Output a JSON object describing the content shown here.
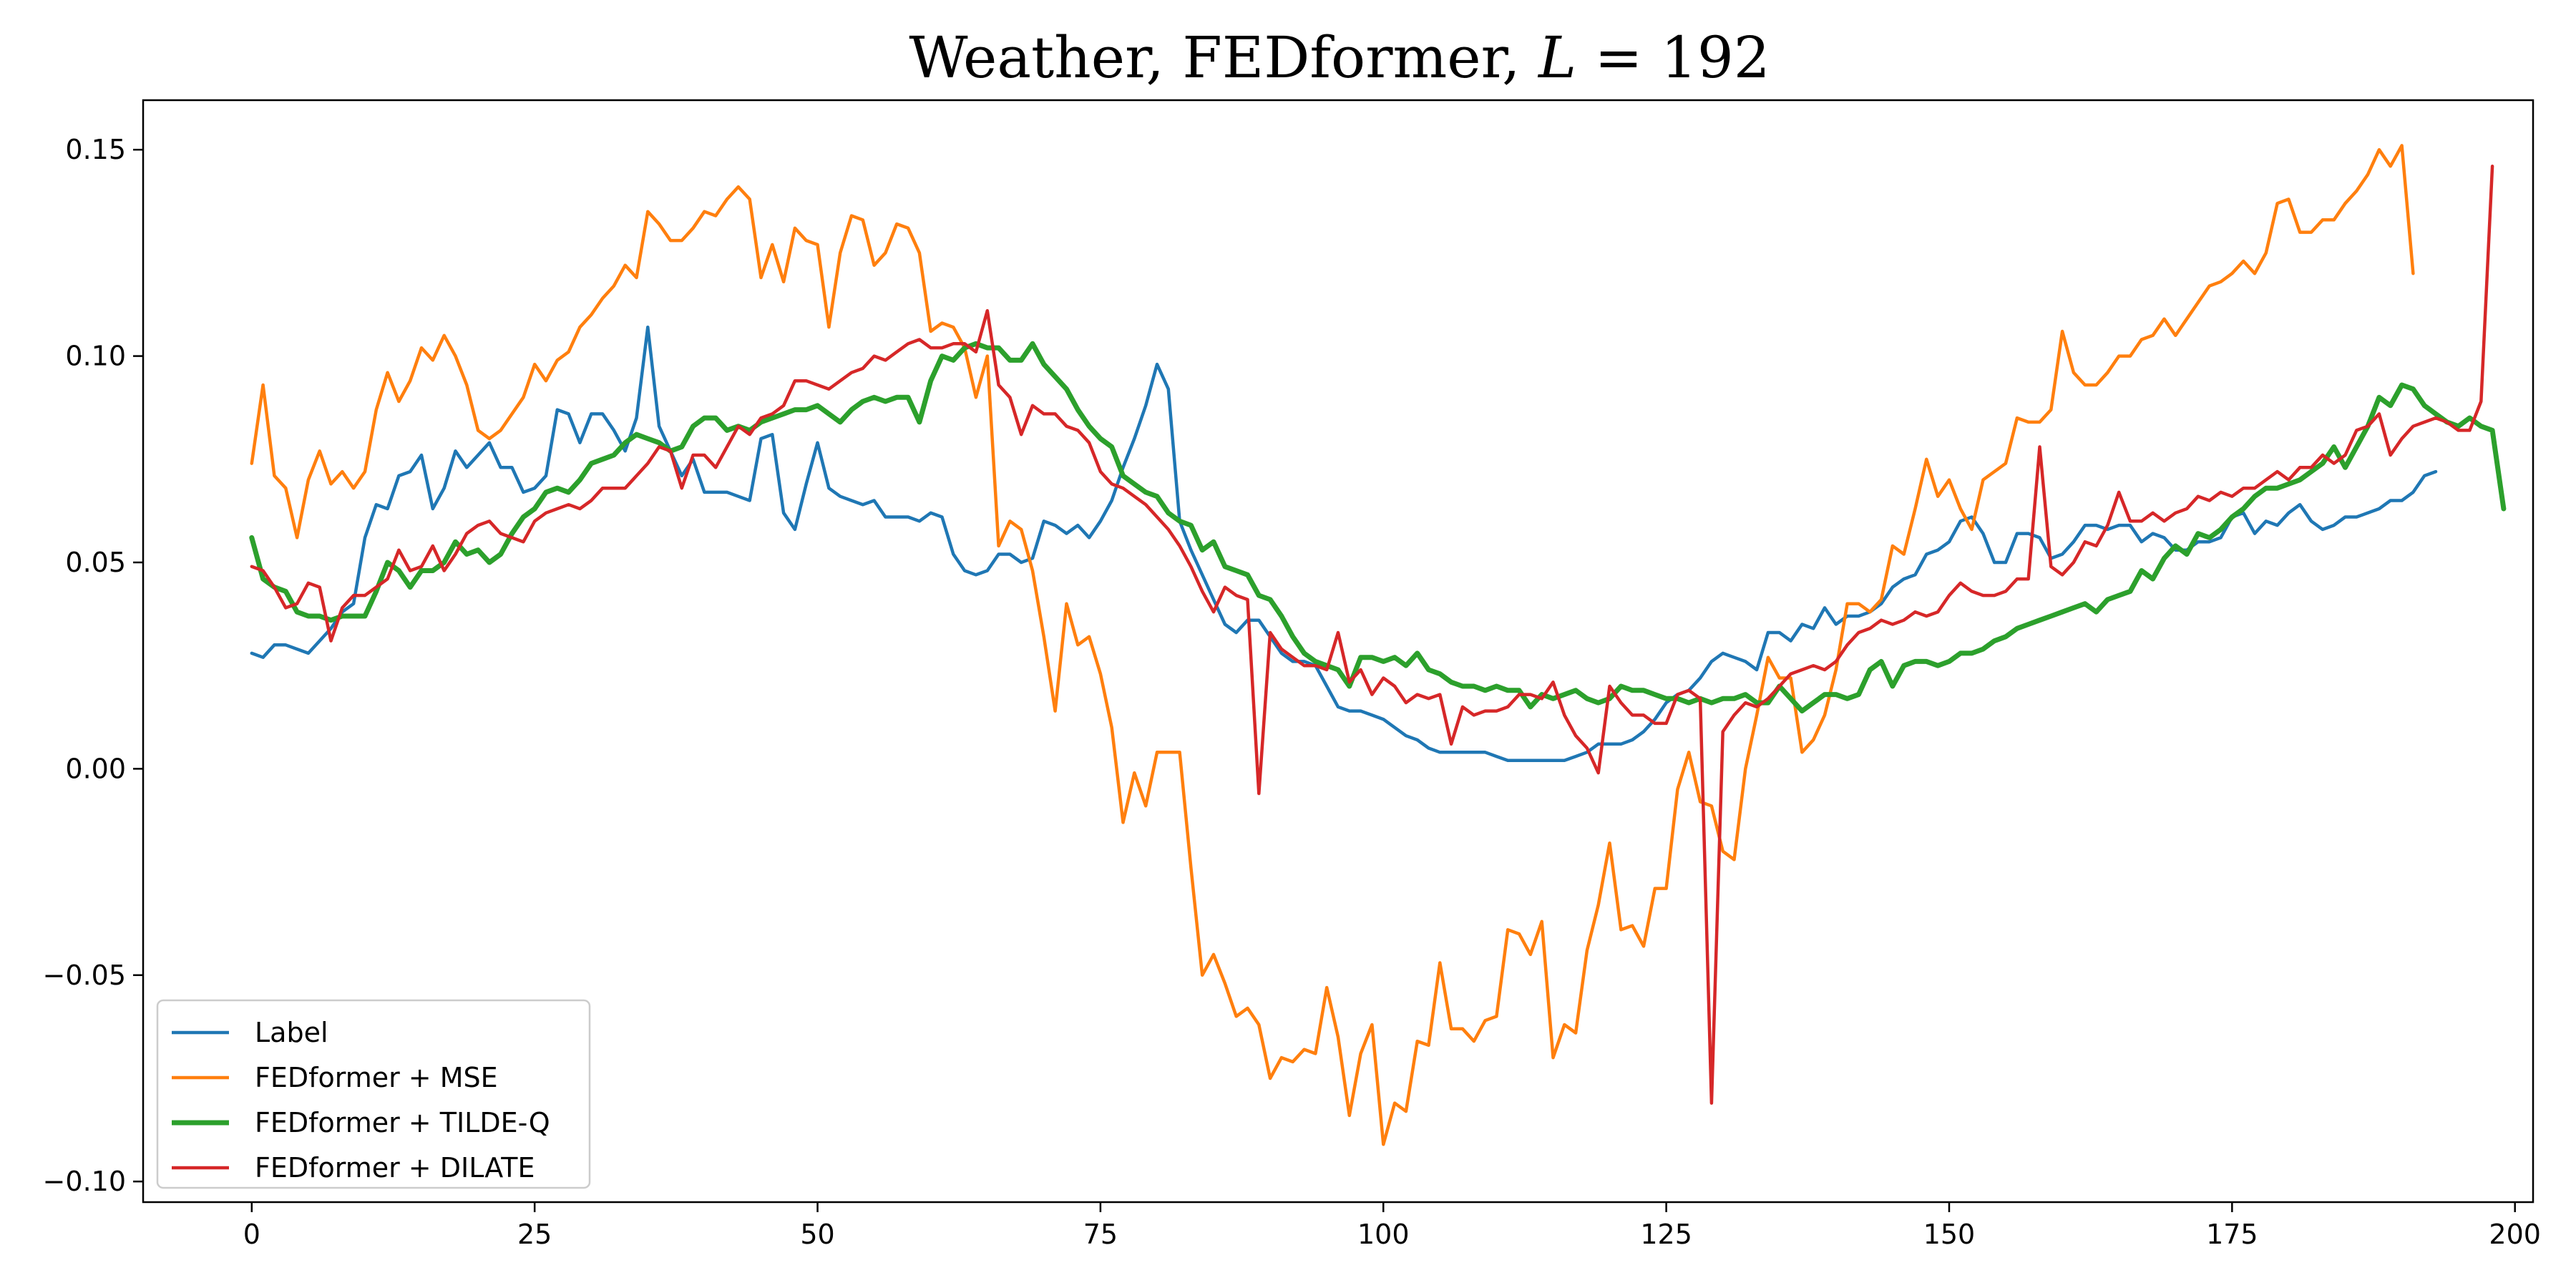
{
  "chart_data": {
    "type": "line",
    "title_main": "Weather, FEDformer, ",
    "title_var": "L",
    "title_rest": " = 192",
    "xlabel": "",
    "ylabel": "",
    "xlim": [
      -9.6,
      201.6
    ],
    "ylim": [
      -0.105,
      0.162
    ],
    "x_ticks": [
      0,
      25,
      50,
      75,
      100,
      125,
      150,
      175,
      200
    ],
    "y_ticks": [
      0.15,
      0.1,
      0.05,
      0.0,
      -0.05,
      -0.1
    ],
    "y_tick_labels": [
      "0.15",
      "0.10",
      "0.05",
      "0.00",
      "−0.05",
      "−0.10"
    ],
    "grid": false,
    "legend_position": "lower-left",
    "x_start": 0,
    "series": [
      {
        "name": "Label",
        "color": "#1f77b4",
        "width": 4.5,
        "values": [
          0.028,
          0.027,
          0.03,
          0.03,
          0.029,
          0.028,
          0.031,
          0.034,
          0.038,
          0.04,
          0.056,
          0.064,
          0.063,
          0.071,
          0.072,
          0.076,
          0.063,
          0.068,
          0.077,
          0.073,
          0.076,
          0.079,
          0.073,
          0.073,
          0.067,
          0.068,
          0.071,
          0.087,
          0.086,
          0.079,
          0.086,
          0.086,
          0.082,
          0.077,
          0.085,
          0.107,
          0.083,
          0.077,
          0.071,
          0.075,
          0.067,
          0.067,
          0.067,
          0.066,
          0.065,
          0.08,
          0.081,
          0.062,
          0.058,
          0.069,
          0.079,
          0.068,
          0.066,
          0.065,
          0.064,
          0.065,
          0.061,
          0.061,
          0.061,
          0.06,
          0.062,
          0.061,
          0.052,
          0.048,
          0.047,
          0.048,
          0.052,
          0.052,
          0.05,
          0.051,
          0.06,
          0.059,
          0.057,
          0.059,
          0.056,
          0.06,
          0.065,
          0.073,
          0.08,
          0.088,
          0.098,
          0.092,
          0.06,
          0.053,
          0.047,
          0.041,
          0.035,
          0.033,
          0.036,
          0.036,
          0.032,
          0.028,
          0.026,
          0.026,
          0.025,
          0.02,
          0.015,
          0.014,
          0.014,
          0.013,
          0.012,
          0.01,
          0.008,
          0.007,
          0.005,
          0.004,
          0.004,
          0.004,
          0.004,
          0.004,
          0.003,
          0.002,
          0.002,
          0.002,
          0.002,
          0.002,
          0.002,
          0.003,
          0.004,
          0.006,
          0.006,
          0.006,
          0.007,
          0.009,
          0.012,
          0.016,
          0.018,
          0.019,
          0.022,
          0.026,
          0.028,
          0.027,
          0.026,
          0.024,
          0.033,
          0.033,
          0.031,
          0.035,
          0.034,
          0.039,
          0.035,
          0.037,
          0.037,
          0.038,
          0.04,
          0.044,
          0.046,
          0.047,
          0.052,
          0.053,
          0.055,
          0.06,
          0.061,
          0.057,
          0.05,
          0.05,
          0.057,
          0.057,
          0.056,
          0.051,
          0.052,
          0.055,
          0.059,
          0.059,
          0.058,
          0.059,
          0.059,
          0.055,
          0.057,
          0.056,
          0.053,
          0.053,
          0.055,
          0.055,
          0.056,
          0.061,
          0.062,
          0.057,
          0.06,
          0.059,
          0.062,
          0.064,
          0.06,
          0.058,
          0.059,
          0.061,
          0.061,
          0.062,
          0.063,
          0.065,
          0.065,
          0.067,
          0.071,
          0.072
        ]
      },
      {
        "name": "FEDformer + MSE",
        "color": "#ff7f0e",
        "width": 4.5,
        "values": [
          0.074,
          0.093,
          0.071,
          0.068,
          0.056,
          0.07,
          0.077,
          0.069,
          0.072,
          0.068,
          0.072,
          0.087,
          0.096,
          0.089,
          0.094,
          0.102,
          0.099,
          0.105,
          0.1,
          0.093,
          0.082,
          0.08,
          0.082,
          0.086,
          0.09,
          0.098,
          0.094,
          0.099,
          0.101,
          0.107,
          0.11,
          0.114,
          0.117,
          0.122,
          0.119,
          0.135,
          0.132,
          0.128,
          0.128,
          0.131,
          0.135,
          0.134,
          0.138,
          0.141,
          0.138,
          0.119,
          0.127,
          0.118,
          0.131,
          0.128,
          0.127,
          0.107,
          0.125,
          0.134,
          0.133,
          0.122,
          0.125,
          0.132,
          0.131,
          0.125,
          0.106,
          0.108,
          0.107,
          0.102,
          0.09,
          0.1,
          0.054,
          0.06,
          0.058,
          0.048,
          0.032,
          0.014,
          0.04,
          0.03,
          0.032,
          0.023,
          0.01,
          -0.013,
          -0.001,
          -0.009,
          0.004,
          0.004,
          0.004,
          -0.024,
          -0.05,
          -0.045,
          -0.052,
          -0.06,
          -0.058,
          -0.062,
          -0.075,
          -0.07,
          -0.071,
          -0.068,
          -0.069,
          -0.053,
          -0.065,
          -0.084,
          -0.069,
          -0.062,
          -0.091,
          -0.081,
          -0.083,
          -0.066,
          -0.067,
          -0.047,
          -0.063,
          -0.063,
          -0.066,
          -0.061,
          -0.06,
          -0.039,
          -0.04,
          -0.045,
          -0.037,
          -0.07,
          -0.062,
          -0.064,
          -0.044,
          -0.033,
          -0.018,
          -0.039,
          -0.038,
          -0.043,
          -0.029,
          -0.029,
          -0.005,
          0.004,
          -0.008,
          -0.009,
          -0.02,
          -0.022,
          0.0,
          0.013,
          0.027,
          0.022,
          0.022,
          0.004,
          0.007,
          0.013,
          0.024,
          0.04,
          0.04,
          0.038,
          0.041,
          0.054,
          0.052,
          0.063,
          0.075,
          0.066,
          0.07,
          0.063,
          0.058,
          0.07,
          0.072,
          0.074,
          0.085,
          0.084,
          0.084,
          0.087,
          0.106,
          0.096,
          0.093,
          0.093,
          0.096,
          0.1,
          0.1,
          0.104,
          0.105,
          0.109,
          0.105,
          0.109,
          0.113,
          0.117,
          0.118,
          0.12,
          0.123,
          0.12,
          0.125,
          0.137,
          0.138,
          0.13,
          0.13,
          0.133,
          0.133,
          0.137,
          0.14,
          0.144,
          0.15,
          0.146,
          0.151,
          0.12
        ]
      },
      {
        "name": "FEDformer + TILDE-Q",
        "color": "#2ca02c",
        "width": 7,
        "values": [
          0.056,
          0.046,
          0.044,
          0.043,
          0.038,
          0.037,
          0.037,
          0.036,
          0.037,
          0.037,
          0.037,
          0.043,
          0.05,
          0.048,
          0.044,
          0.048,
          0.048,
          0.05,
          0.055,
          0.052,
          0.053,
          0.05,
          0.052,
          0.057,
          0.061,
          0.063,
          0.067,
          0.068,
          0.067,
          0.07,
          0.074,
          0.075,
          0.076,
          0.079,
          0.081,
          0.08,
          0.079,
          0.077,
          0.078,
          0.083,
          0.085,
          0.085,
          0.082,
          0.083,
          0.082,
          0.084,
          0.085,
          0.086,
          0.087,
          0.087,
          0.088,
          0.086,
          0.084,
          0.087,
          0.089,
          0.09,
          0.089,
          0.09,
          0.09,
          0.084,
          0.094,
          0.1,
          0.099,
          0.102,
          0.103,
          0.102,
          0.102,
          0.099,
          0.099,
          0.103,
          0.098,
          0.095,
          0.092,
          0.087,
          0.083,
          0.08,
          0.078,
          0.071,
          0.069,
          0.067,
          0.066,
          0.062,
          0.06,
          0.059,
          0.053,
          0.055,
          0.049,
          0.048,
          0.047,
          0.042,
          0.041,
          0.037,
          0.032,
          0.028,
          0.026,
          0.025,
          0.024,
          0.02,
          0.027,
          0.027,
          0.026,
          0.027,
          0.025,
          0.028,
          0.024,
          0.023,
          0.021,
          0.02,
          0.02,
          0.019,
          0.02,
          0.019,
          0.019,
          0.015,
          0.018,
          0.017,
          0.018,
          0.019,
          0.017,
          0.016,
          0.017,
          0.02,
          0.019,
          0.019,
          0.018,
          0.017,
          0.017,
          0.016,
          0.017,
          0.016,
          0.017,
          0.017,
          0.018,
          0.016,
          0.016,
          0.02,
          0.017,
          0.014,
          0.016,
          0.018,
          0.018,
          0.017,
          0.018,
          0.024,
          0.026,
          0.02,
          0.025,
          0.026,
          0.026,
          0.025,
          0.026,
          0.028,
          0.028,
          0.029,
          0.031,
          0.032,
          0.034,
          0.035,
          0.036,
          0.037,
          0.038,
          0.039,
          0.04,
          0.038,
          0.041,
          0.042,
          0.043,
          0.048,
          0.046,
          0.051,
          0.054,
          0.052,
          0.057,
          0.056,
          0.058,
          0.061,
          0.063,
          0.066,
          0.068,
          0.068,
          0.069,
          0.07,
          0.072,
          0.074,
          0.078,
          0.073,
          0.078,
          0.083,
          0.09,
          0.088,
          0.093,
          0.092,
          0.088,
          0.086,
          0.084,
          0.083,
          0.085,
          0.083,
          0.082,
          0.063
        ]
      },
      {
        "name": "FEDformer + DILATE",
        "color": "#d62728",
        "width": 4.5,
        "values": [
          0.049,
          0.048,
          0.044,
          0.039,
          0.04,
          0.045,
          0.044,
          0.031,
          0.039,
          0.042,
          0.042,
          0.044,
          0.046,
          0.053,
          0.048,
          0.049,
          0.054,
          0.048,
          0.052,
          0.057,
          0.059,
          0.06,
          0.057,
          0.056,
          0.055,
          0.06,
          0.062,
          0.063,
          0.064,
          0.063,
          0.065,
          0.068,
          0.068,
          0.068,
          0.071,
          0.074,
          0.078,
          0.077,
          0.068,
          0.076,
          0.076,
          0.073,
          0.078,
          0.083,
          0.081,
          0.085,
          0.086,
          0.088,
          0.094,
          0.094,
          0.093,
          0.092,
          0.094,
          0.096,
          0.097,
          0.1,
          0.099,
          0.101,
          0.103,
          0.104,
          0.102,
          0.102,
          0.103,
          0.103,
          0.101,
          0.111,
          0.093,
          0.09,
          0.081,
          0.088,
          0.086,
          0.086,
          0.083,
          0.082,
          0.079,
          0.072,
          0.069,
          0.068,
          0.066,
          0.064,
          0.061,
          0.058,
          0.054,
          0.049,
          0.043,
          0.038,
          0.044,
          0.042,
          0.041,
          -0.006,
          0.033,
          0.029,
          0.027,
          0.025,
          0.025,
          0.024,
          0.033,
          0.021,
          0.024,
          0.018,
          0.022,
          0.02,
          0.016,
          0.018,
          0.017,
          0.018,
          0.006,
          0.015,
          0.013,
          0.014,
          0.014,
          0.015,
          0.018,
          0.018,
          0.017,
          0.021,
          0.013,
          0.008,
          0.005,
          -0.001,
          0.02,
          0.016,
          0.013,
          0.013,
          0.011,
          0.011,
          0.018,
          0.019,
          0.017,
          -0.081,
          0.009,
          0.013,
          0.016,
          0.015,
          0.017,
          0.02,
          0.023,
          0.024,
          0.025,
          0.024,
          0.026,
          0.03,
          0.033,
          0.034,
          0.036,
          0.035,
          0.036,
          0.038,
          0.037,
          0.038,
          0.042,
          0.045,
          0.043,
          0.042,
          0.042,
          0.043,
          0.046,
          0.046,
          0.078,
          0.049,
          0.047,
          0.05,
          0.055,
          0.054,
          0.059,
          0.067,
          0.06,
          0.06,
          0.062,
          0.06,
          0.062,
          0.063,
          0.066,
          0.065,
          0.067,
          0.066,
          0.068,
          0.068,
          0.07,
          0.072,
          0.07,
          0.073,
          0.073,
          0.076,
          0.074,
          0.076,
          0.082,
          0.083,
          0.086,
          0.076,
          0.08,
          0.083,
          0.084,
          0.085,
          0.084,
          0.082,
          0.082,
          0.089,
          0.146
        ]
      }
    ]
  }
}
